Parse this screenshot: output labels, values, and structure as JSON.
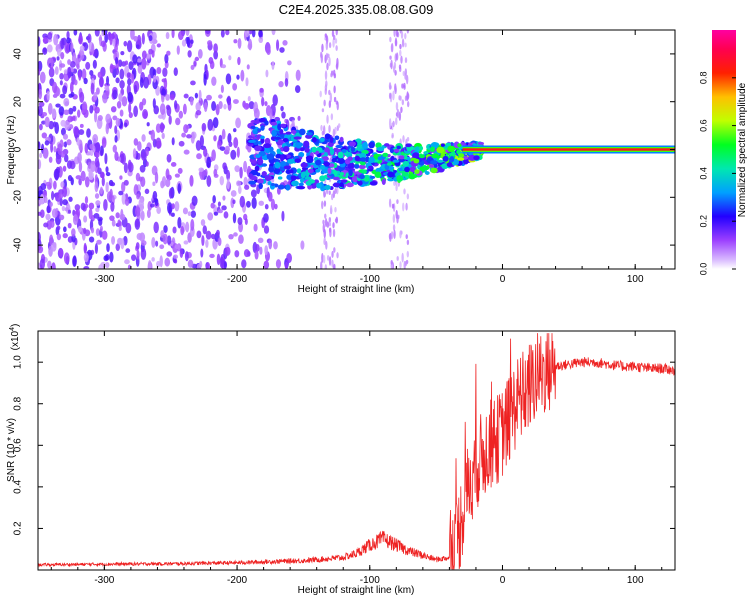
{
  "title": "C2E4.2025.335.08.08.G09",
  "chart_data": [
    {
      "type": "heatmap",
      "title": "C2E4.2025.335.08.08.G09",
      "xlabel": "Height of straight line (km)",
      "ylabel": "Frequency (Hz)",
      "xlim": [
        -350,
        130
      ],
      "ylim": [
        -50,
        50
      ],
      "x_ticks": [
        -300,
        -200,
        -100,
        0,
        100
      ],
      "x_tick_labels": [
        "-300",
        "-200",
        "-100",
        "0",
        "100"
      ],
      "y_ticks": [
        -40,
        -20,
        0,
        20,
        40
      ],
      "y_tick_labels": [
        "-40",
        "-20",
        "0",
        "20",
        "40"
      ],
      "colorbar": {
        "label": "Normalized spectral amplitude",
        "range": [
          0,
          1
        ],
        "ticks": [
          0.0,
          0.2,
          0.4,
          0.6,
          0.8
        ],
        "tick_labels": [
          "0.0",
          "0.2",
          "0.4",
          "0.6",
          "0.8"
        ],
        "colors": [
          "#ffffff",
          "#c080ff",
          "#7a00e6",
          "#0000ff",
          "#00c8ff",
          "#00ff40",
          "#ffff00",
          "#ff8000",
          "#ff0000",
          "#ff00c0"
        ]
      },
      "dominant_frequency_hz": 0,
      "signal_onset_km": -190,
      "coherent_tone_start_km": -30,
      "noise_region_km": [
        -350,
        -160
      ]
    },
    {
      "type": "line",
      "title": "",
      "xlabel": "Height of straight line (km)",
      "ylabel": "SNR (10 * v/v)",
      "y_multiplier": "(x10",
      "y_multiplier_exponent": "4",
      "xlim": [
        -350,
        130
      ],
      "ylim": [
        0,
        1.15
      ],
      "x_ticks": [
        -300,
        -200,
        -100,
        0,
        100
      ],
      "x_tick_labels": [
        "-300",
        "-200",
        "-100",
        "0",
        "100"
      ],
      "y_ticks": [
        0.2,
        0.4,
        0.6,
        0.8,
        1.0
      ],
      "y_tick_labels": [
        "0.2",
        "0.4",
        "0.6",
        "0.8",
        "1.0"
      ],
      "series": [
        {
          "name": "SNR",
          "color": "#ee2222",
          "x": [
            -350,
            -300,
            -250,
            -200,
            -150,
            -120,
            -110,
            -100,
            -90,
            -80,
            -70,
            -60,
            -50,
            -40,
            -35,
            -30,
            -25,
            -20,
            -15,
            -10,
            -5,
            0,
            5,
            10,
            15,
            20,
            25,
            30,
            40,
            50,
            60,
            70,
            80,
            90,
            100,
            110,
            120,
            130
          ],
          "values": [
            0.025,
            0.028,
            0.03,
            0.035,
            0.045,
            0.06,
            0.08,
            0.12,
            0.15,
            0.12,
            0.09,
            0.07,
            0.05,
            0.06,
            0.12,
            0.28,
            0.42,
            0.5,
            0.55,
            0.6,
            0.62,
            0.66,
            0.72,
            0.8,
            0.84,
            0.88,
            0.92,
            0.95,
            0.98,
            0.99,
            1.0,
            1.0,
            0.99,
            0.98,
            0.98,
            0.97,
            0.97,
            0.96
          ]
        }
      ]
    }
  ]
}
